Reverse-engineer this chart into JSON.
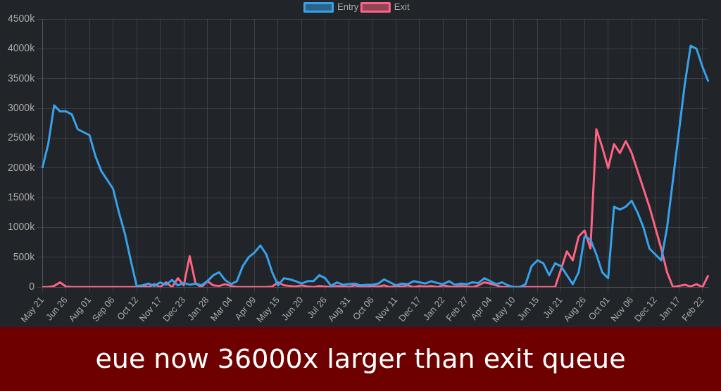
{
  "chart_data": {
    "type": "line",
    "title": "eue now 36000x larger than exit queue",
    "categories": [
      "May 21",
      null,
      null,
      null,
      "Jun 26",
      null,
      null,
      null,
      "Aug 01",
      null,
      null,
      null,
      "Sep 06",
      null,
      null,
      null,
      "Oct 12",
      null,
      null,
      null,
      "Nov 17",
      null,
      null,
      null,
      "Dec 23",
      null,
      null,
      null,
      "Jan 28",
      null,
      null,
      null,
      "Mar 04",
      null,
      null,
      null,
      "Apr 09",
      null,
      null,
      null,
      "May 15",
      null,
      null,
      null,
      "Jun 20",
      null,
      null,
      null,
      "Jul 26",
      null,
      null,
      null,
      "Aug 31",
      null,
      null,
      null,
      "Oct 06",
      null,
      null,
      null,
      "Nov 11",
      null,
      null,
      null,
      "Dec 17",
      null,
      null,
      null,
      "Jan 22",
      null,
      null,
      null,
      "Feb 27",
      null,
      null,
      null,
      "Apr 04",
      null,
      null,
      null,
      "May 10",
      null,
      null,
      null,
      "Jun 15",
      null,
      null,
      null,
      "Jul 21",
      null,
      null,
      null,
      "Aug 26",
      null,
      null,
      null,
      "Oct 01",
      null,
      null,
      null,
      "Nov 06",
      null,
      null,
      null,
      "Dec 12",
      null,
      null,
      null,
      "Jan 17",
      null,
      null,
      null,
      "Feb 22",
      null
    ],
    "series": [
      {
        "name": "Entry",
        "color": "#36a2eb",
        "values": [
          2000,
          2400,
          3050,
          2950,
          2950,
          2900,
          2650,
          2600,
          2550,
          2200,
          1950,
          1800,
          1650,
          1250,
          900,
          450,
          20,
          30,
          60,
          20,
          80,
          40,
          120,
          30,
          70,
          40,
          60,
          30,
          100,
          200,
          250,
          120,
          50,
          100,
          350,
          500,
          580,
          700,
          550,
          250,
          30,
          150,
          130,
          100,
          60,
          100,
          100,
          200,
          150,
          20,
          80,
          40,
          50,
          60,
          30,
          40,
          40,
          60,
          130,
          80,
          30,
          60,
          50,
          100,
          80,
          60,
          100,
          70,
          50,
          100,
          40,
          60,
          50,
          80,
          70,
          150,
          100,
          50,
          80,
          30,
          0,
          0,
          50,
          350,
          450,
          400,
          200,
          400,
          350,
          200,
          50,
          250,
          850,
          800,
          550,
          250,
          150,
          1350,
          1300,
          1350,
          1450,
          1250,
          1000,
          650,
          550,
          450,
          1000,
          1800,
          2600,
          3400,
          4050,
          4000,
          3700,
          3450
        ]
      },
      {
        "name": "Exit",
        "color": "#ff6384",
        "values": [
          0,
          0,
          20,
          80,
          10,
          0,
          0,
          0,
          0,
          0,
          0,
          0,
          0,
          0,
          0,
          0,
          0,
          20,
          0,
          50,
          0,
          80,
          0,
          150,
          30,
          520,
          60,
          0,
          100,
          30,
          20,
          50,
          20,
          0,
          0,
          0,
          0,
          0,
          0,
          10,
          80,
          30,
          20,
          10,
          30,
          10,
          0,
          20,
          10,
          0,
          20,
          10,
          0,
          30,
          10,
          0,
          20,
          10,
          30,
          0,
          20,
          10,
          30,
          0,
          20,
          10,
          20,
          0,
          30,
          10,
          0,
          20,
          10,
          0,
          30,
          80,
          60,
          30,
          0,
          0,
          0,
          0,
          0,
          0,
          0,
          0,
          0,
          0,
          300,
          600,
          450,
          850,
          950,
          650,
          2650,
          2350,
          2000,
          2400,
          2250,
          2450,
          2250,
          1950,
          1650,
          1350,
          1000,
          650,
          250,
          0,
          20,
          40,
          10,
          50,
          0,
          200
        ]
      }
    ],
    "ylim": [
      0,
      4500
    ],
    "yticks": [
      0,
      {
        "value": 500,
        "label": "500k"
      },
      {
        "value": 1000,
        "label": "1000k"
      },
      {
        "value": 1500,
        "label": "1500k"
      },
      {
        "value": 2000,
        "label": "2000k"
      },
      {
        "value": 2500,
        "label": "2500k"
      },
      {
        "value": 3000,
        "label": "3000k"
      },
      {
        "value": 3500,
        "label": "3500k"
      },
      {
        "value": 4000,
        "label": "4000k"
      },
      {
        "value": 4500,
        "label": "4500k"
      }
    ],
    "grid": true,
    "legend": "top",
    "marker": "none",
    "line_style": "solid"
  }
}
